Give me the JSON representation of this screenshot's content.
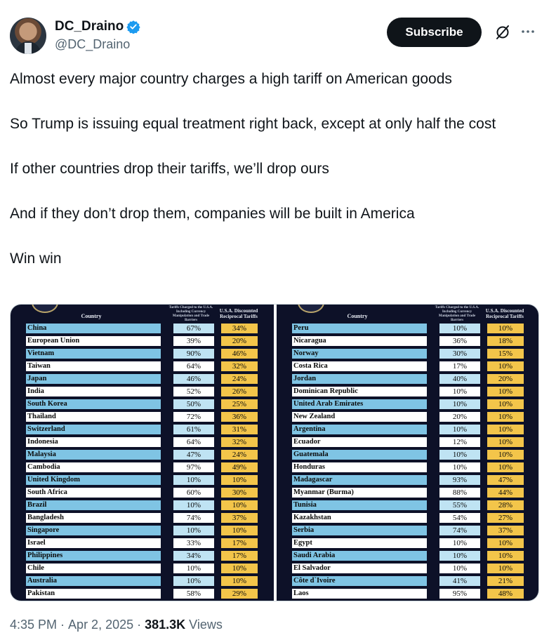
{
  "author": {
    "display_name": "DC_Draino",
    "handle": "@DC_Draino"
  },
  "actions": {
    "subscribe_label": "Subscribe"
  },
  "tweet": {
    "paragraphs": [
      "Almost every major country charges a high tariff on American goods",
      "So Trump is issuing equal treatment right back, except at only half the cost",
      "If other countries drop their tariffs, we’ll drop ours",
      "And if they don’t drop them, companies will be built in America",
      "Win win"
    ]
  },
  "media": {
    "headers": {
      "country": "Country",
      "tariffs_charged": "Tariffs Charged to the U.S.A. Including Currency Manipulation and Trade Barriers",
      "reciprocal": "U.S.A. Discounted Reciprocal Tariffs"
    },
    "left_table": [
      {
        "country": "China",
        "charged": "67%",
        "reciprocal": "34%"
      },
      {
        "country": "European Union",
        "charged": "39%",
        "reciprocal": "20%"
      },
      {
        "country": "Vietnam",
        "charged": "90%",
        "reciprocal": "46%"
      },
      {
        "country": "Taiwan",
        "charged": "64%",
        "reciprocal": "32%"
      },
      {
        "country": "Japan",
        "charged": "46%",
        "reciprocal": "24%"
      },
      {
        "country": "India",
        "charged": "52%",
        "reciprocal": "26%"
      },
      {
        "country": "South Korea",
        "charged": "50%",
        "reciprocal": "25%"
      },
      {
        "country": "Thailand",
        "charged": "72%",
        "reciprocal": "36%"
      },
      {
        "country": "Switzerland",
        "charged": "61%",
        "reciprocal": "31%"
      },
      {
        "country": "Indonesia",
        "charged": "64%",
        "reciprocal": "32%"
      },
      {
        "country": "Malaysia",
        "charged": "47%",
        "reciprocal": "24%"
      },
      {
        "country": "Cambodia",
        "charged": "97%",
        "reciprocal": "49%"
      },
      {
        "country": "United Kingdom",
        "charged": "10%",
        "reciprocal": "10%"
      },
      {
        "country": "South Africa",
        "charged": "60%",
        "reciprocal": "30%"
      },
      {
        "country": "Brazil",
        "charged": "10%",
        "reciprocal": "10%"
      },
      {
        "country": "Bangladesh",
        "charged": "74%",
        "reciprocal": "37%"
      },
      {
        "country": "Singapore",
        "charged": "10%",
        "reciprocal": "10%"
      },
      {
        "country": "Israel",
        "charged": "33%",
        "reciprocal": "17%"
      },
      {
        "country": "Philippines",
        "charged": "34%",
        "reciprocal": "17%"
      },
      {
        "country": "Chile",
        "charged": "10%",
        "reciprocal": "10%"
      },
      {
        "country": "Australia",
        "charged": "10%",
        "reciprocal": "10%"
      },
      {
        "country": "Pakistan",
        "charged": "58%",
        "reciprocal": "29%"
      }
    ],
    "right_table": [
      {
        "country": "Peru",
        "charged": "10%",
        "reciprocal": "10%"
      },
      {
        "country": "Nicaragua",
        "charged": "36%",
        "reciprocal": "18%"
      },
      {
        "country": "Norway",
        "charged": "30%",
        "reciprocal": "15%"
      },
      {
        "country": "Costa Rica",
        "charged": "17%",
        "reciprocal": "10%"
      },
      {
        "country": "Jordan",
        "charged": "40%",
        "reciprocal": "20%"
      },
      {
        "country": "Dominican Republic",
        "charged": "10%",
        "reciprocal": "10%"
      },
      {
        "country": "United Arab Emirates",
        "charged": "10%",
        "reciprocal": "10%"
      },
      {
        "country": "New Zealand",
        "charged": "20%",
        "reciprocal": "10%"
      },
      {
        "country": "Argentina",
        "charged": "10%",
        "reciprocal": "10%"
      },
      {
        "country": "Ecuador",
        "charged": "12%",
        "reciprocal": "10%"
      },
      {
        "country": "Guatemala",
        "charged": "10%",
        "reciprocal": "10%"
      },
      {
        "country": "Honduras",
        "charged": "10%",
        "reciprocal": "10%"
      },
      {
        "country": "Madagascar",
        "charged": "93%",
        "reciprocal": "47%"
      },
      {
        "country": "Myanmar (Burma)",
        "charged": "88%",
        "reciprocal": "44%"
      },
      {
        "country": "Tunisia",
        "charged": "55%",
        "reciprocal": "28%"
      },
      {
        "country": "Kazakhstan",
        "charged": "54%",
        "reciprocal": "27%"
      },
      {
        "country": "Serbia",
        "charged": "74%",
        "reciprocal": "37%"
      },
      {
        "country": "Egypt",
        "charged": "10%",
        "reciprocal": "10%"
      },
      {
        "country": "Saudi Arabia",
        "charged": "10%",
        "reciprocal": "10%"
      },
      {
        "country": "El Salvador",
        "charged": "10%",
        "reciprocal": "10%"
      },
      {
        "country": "Côte d`Ivoire",
        "charged": "41%",
        "reciprocal": "21%"
      },
      {
        "country": "Laos",
        "charged": "95%",
        "reciprocal": "48%"
      }
    ]
  },
  "meta": {
    "time": "4:35 PM",
    "separator": "·",
    "date": "Apr 2, 2025",
    "views_count": "381.3K",
    "views_label": "Views"
  },
  "icons": {
    "verified": "verified-badge-icon",
    "grok": "grok-icon",
    "more": "more-icon"
  },
  "colors": {
    "subscribe_bg": "#0f1419",
    "verified": "#1d9bf0",
    "table_bg": "#0d1128",
    "row_blue": "#7fc4e4",
    "recip_gold": "#f3c54a"
  }
}
